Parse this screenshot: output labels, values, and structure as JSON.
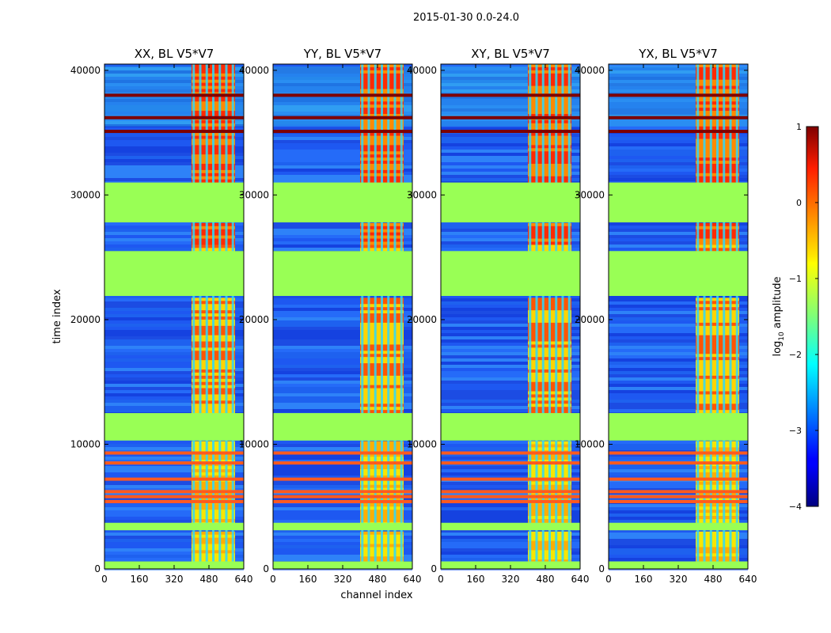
{
  "chart_data": {
    "type": "heatmap",
    "title": "2015-01-30 0.0-24.0",
    "xlabel": "channel index",
    "ylabel": "time index",
    "xlim": [
      0,
      640
    ],
    "ylim": [
      0,
      40500
    ],
    "xticks": [
      0,
      160,
      320,
      480,
      640
    ],
    "yticks": [
      0,
      10000,
      20000,
      30000,
      40000
    ],
    "panels": [
      {
        "title": "XX, BL V5*V7"
      },
      {
        "title": "YY, BL V5*V7"
      },
      {
        "title": "XY, BL V5*V7"
      },
      {
        "title": "YX, BL V5*V7"
      }
    ],
    "colorbar": {
      "label_base": "log",
      "label_sub": "10",
      "label_rest": " amplitude",
      "range": [
        -4,
        1
      ],
      "ticks": [
        1,
        0,
        -1,
        -2,
        -3,
        -4
      ],
      "tick_labels": [
        "1",
        "0",
        "−1",
        "−2",
        "−3",
        "−4"
      ]
    },
    "bright_channel_range": [
      400,
      600
    ],
    "bright_channel_stripes": [
      410,
      440,
      470,
      500,
      530,
      560,
      590
    ],
    "flagged_time_ranges": [
      [
        31000,
        27800
      ],
      [
        25500,
        21900
      ],
      [
        12500,
        10300
      ],
      [
        3700,
        3100
      ],
      [
        600,
        0
      ]
    ],
    "bright_time_rows": [
      38000,
      36200,
      35100,
      9300,
      8500,
      7200,
      6200,
      5800,
      5400
    ]
  }
}
